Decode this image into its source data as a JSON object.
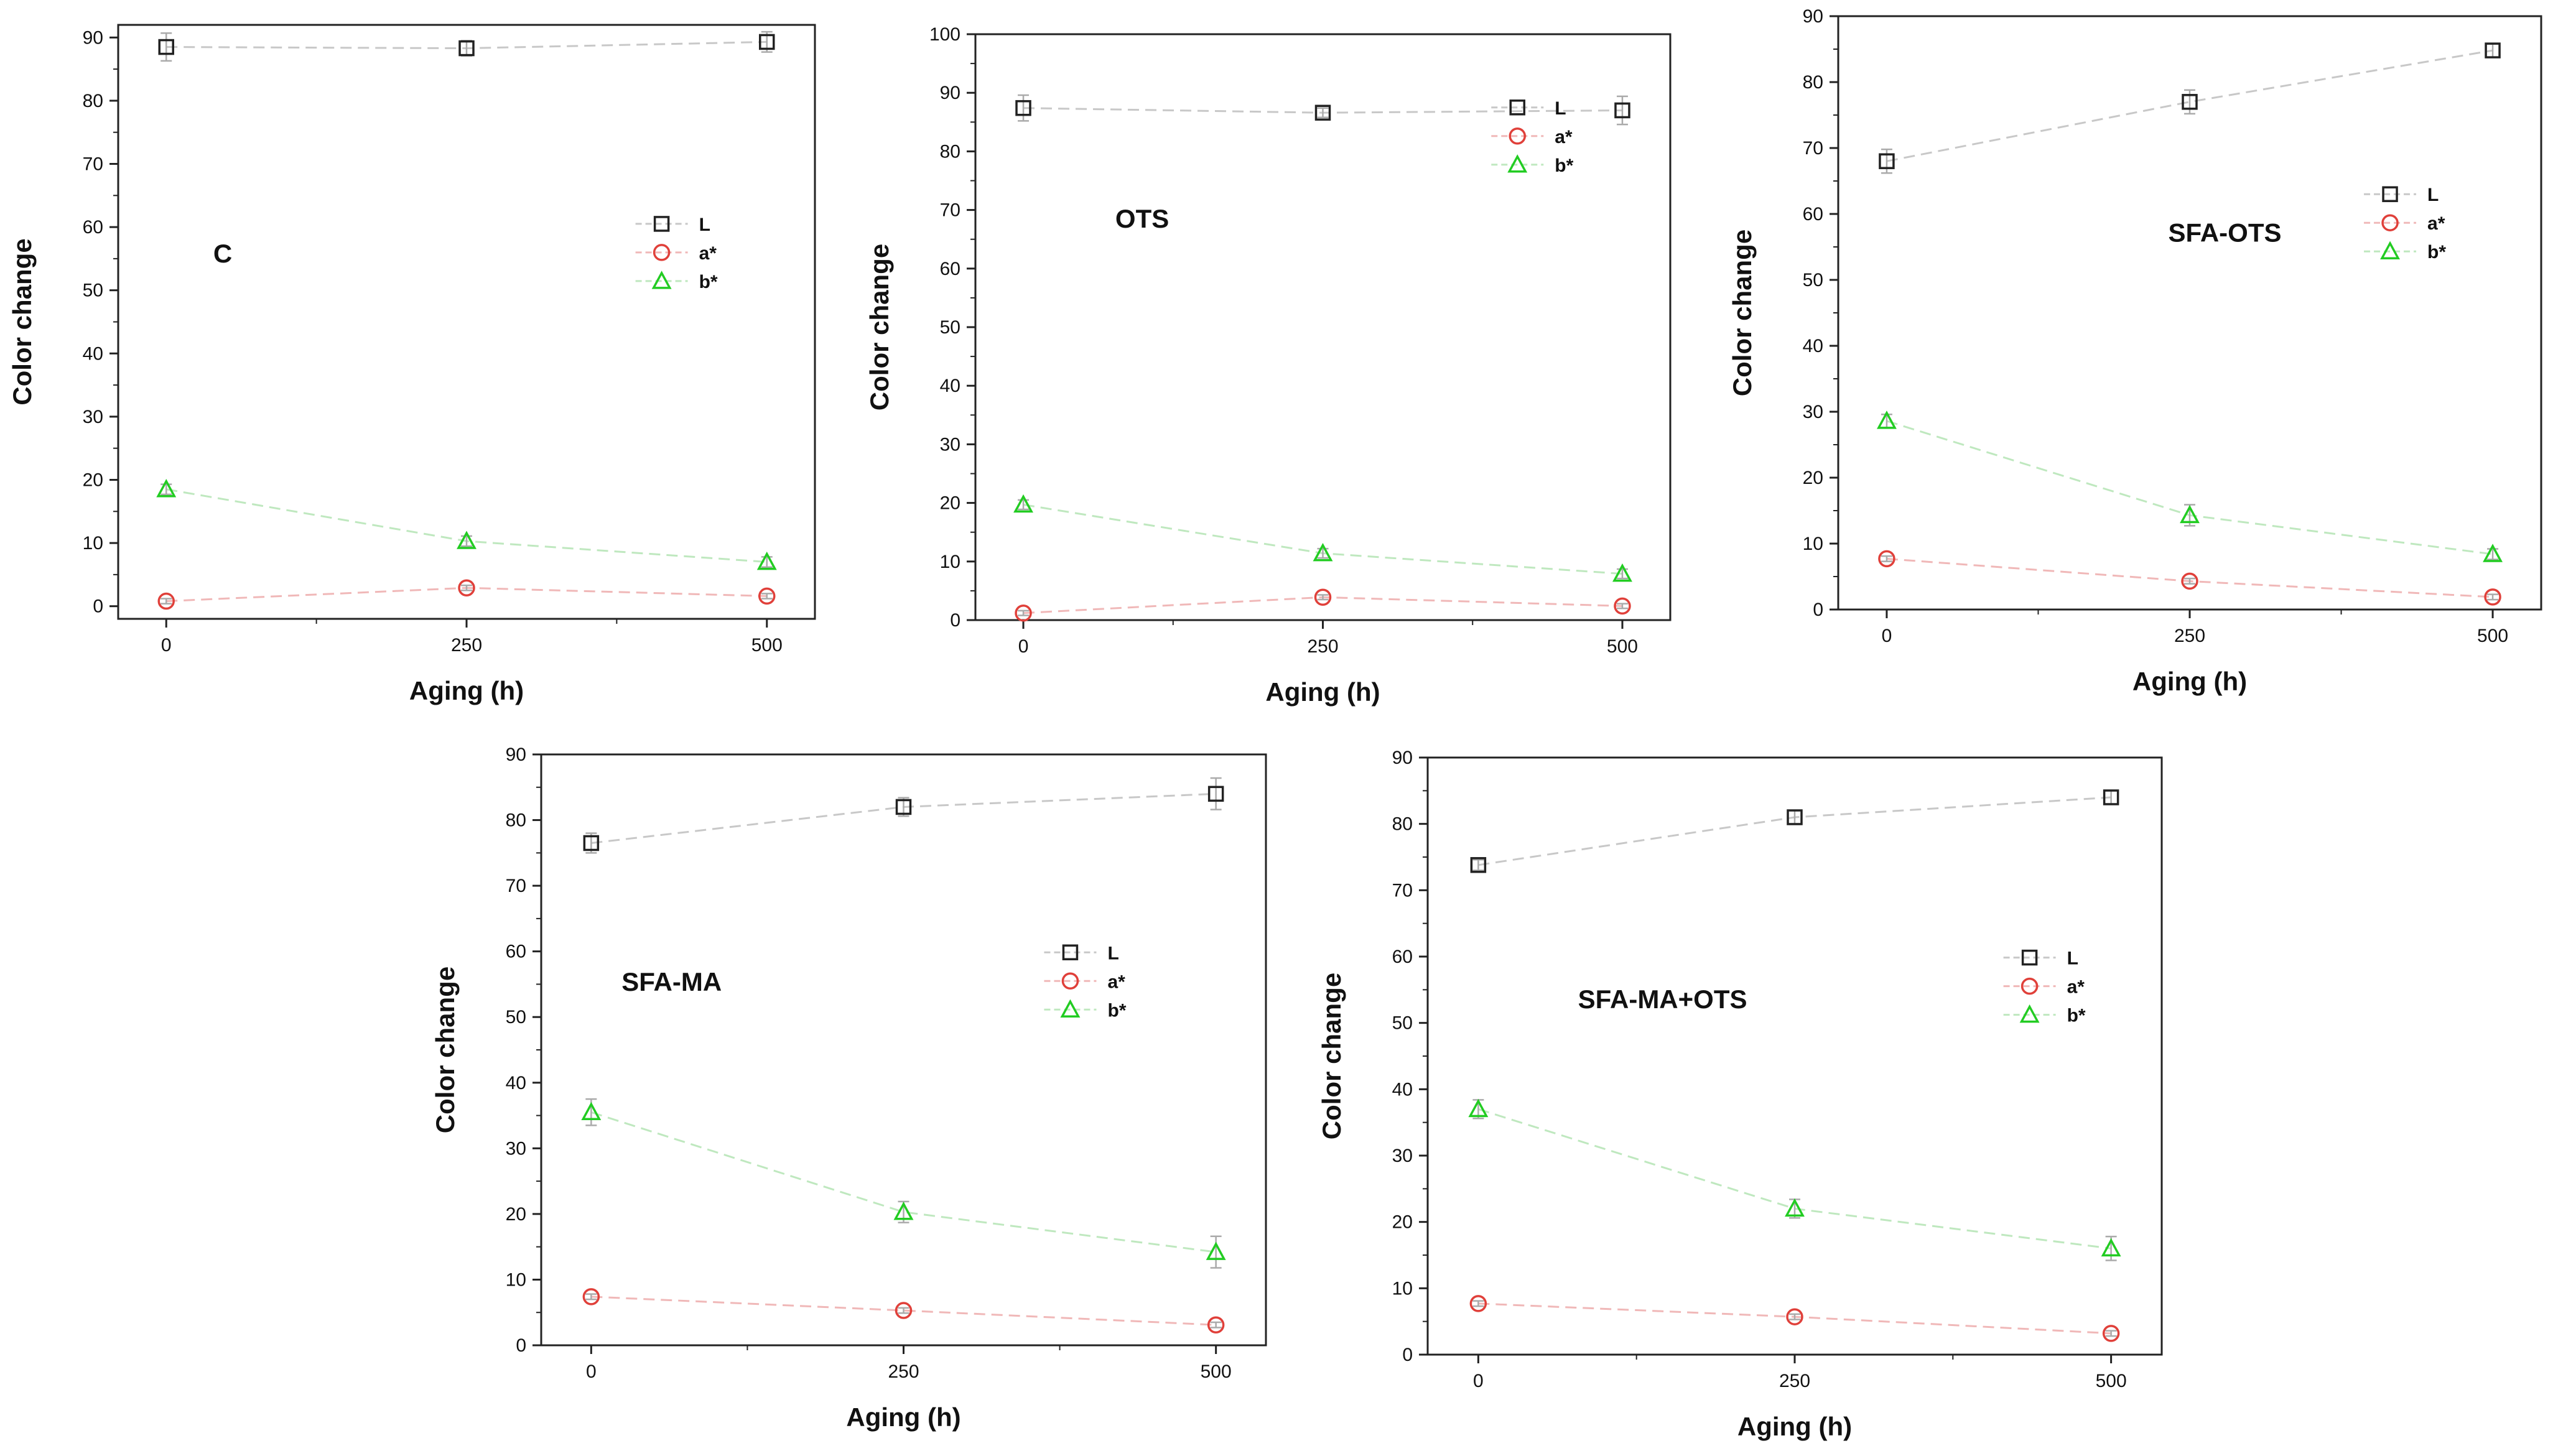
{
  "figure": {
    "series_styles": [
      {
        "key": "L",
        "marker": "square",
        "color": "#222222"
      },
      {
        "key": "a*",
        "marker": "circle",
        "color": "#e0403a"
      },
      {
        "key": "b*",
        "marker": "triangle",
        "color": "#22cc22"
      }
    ],
    "line_colors": {
      "L": "#c8c8c8",
      "a*": "#f0b8b8",
      "b*": "#bfe8bf"
    },
    "error_bar_color": "#aaaaaa"
  },
  "chart_data": [
    {
      "type": "scatter",
      "title": "C",
      "xlabel": "Aging (h)",
      "ylabel": "Color change",
      "x": [
        0,
        250,
        500
      ],
      "xticks": [
        0,
        250,
        500
      ],
      "xlim": [
        -40,
        540
      ],
      "ylim": [
        -2,
        92
      ],
      "yticks": [
        0,
        10,
        20,
        30,
        40,
        50,
        60,
        70,
        80,
        90
      ],
      "legend_position": "right-middle",
      "series": [
        {
          "name": "L",
          "values": [
            88.5,
            88.3,
            89.3
          ],
          "errors": [
            2.2,
            1.2,
            1.6
          ]
        },
        {
          "name": "a*",
          "values": [
            0.8,
            2.9,
            1.6
          ],
          "errors": [
            0.4,
            0.4,
            0.4
          ]
        },
        {
          "name": "b*",
          "values": [
            18.5,
            10.3,
            7.0
          ],
          "errors": [
            0.8,
            0.8,
            0.8
          ]
        }
      ]
    },
    {
      "type": "scatter",
      "title": "OTS",
      "xlabel": "Aging (h)",
      "ylabel": "Color change",
      "x": [
        0,
        250,
        500
      ],
      "xticks": [
        0,
        250,
        500
      ],
      "xlim": [
        -40,
        540
      ],
      "ylim": [
        0,
        100
      ],
      "yticks": [
        0,
        10,
        20,
        30,
        40,
        50,
        60,
        70,
        80,
        90,
        100
      ],
      "legend_position": "right-top",
      "series": [
        {
          "name": "L",
          "values": [
            87.4,
            86.6,
            87.0
          ],
          "errors": [
            2.2,
            0.8,
            2.4
          ]
        },
        {
          "name": "a*",
          "values": [
            1.2,
            3.9,
            2.4
          ],
          "errors": [
            0.4,
            0.4,
            0.4
          ]
        },
        {
          "name": "b*",
          "values": [
            19.7,
            11.4,
            7.9
          ],
          "errors": [
            0.8,
            0.8,
            0.8
          ]
        }
      ]
    },
    {
      "type": "scatter",
      "title": "SFA-OTS",
      "xlabel": "Aging (h)",
      "ylabel": "Color change",
      "x": [
        0,
        250,
        500
      ],
      "xticks": [
        0,
        250,
        500
      ],
      "xlim": [
        -40,
        540
      ],
      "ylim": [
        0,
        90
      ],
      "yticks": [
        0,
        10,
        20,
        30,
        40,
        50,
        60,
        70,
        80,
        90
      ],
      "legend_position": "right-middle",
      "series": [
        {
          "name": "L",
          "values": [
            68.0,
            77.0,
            84.8
          ],
          "errors": [
            1.8,
            1.8,
            1.0
          ]
        },
        {
          "name": "a*",
          "values": [
            7.7,
            4.3,
            1.9
          ],
          "errors": [
            0.4,
            0.4,
            0.4
          ]
        },
        {
          "name": "b*",
          "values": [
            28.6,
            14.3,
            8.4
          ],
          "errors": [
            1.0,
            1.6,
            0.8
          ]
        }
      ]
    },
    {
      "type": "scatter",
      "title": "SFA-MA",
      "xlabel": "Aging (h)",
      "ylabel": "Color change",
      "x": [
        0,
        250,
        500
      ],
      "xticks": [
        0,
        250,
        500
      ],
      "xlim": [
        -40,
        540
      ],
      "ylim": [
        0,
        90
      ],
      "yticks": [
        0,
        10,
        20,
        30,
        40,
        50,
        60,
        70,
        80,
        90
      ],
      "legend_position": "right-middle",
      "series": [
        {
          "name": "L",
          "values": [
            76.5,
            82.0,
            84.0
          ],
          "errors": [
            1.5,
            1.4,
            2.4
          ]
        },
        {
          "name": "a*",
          "values": [
            7.4,
            5.3,
            3.1
          ],
          "errors": [
            0.4,
            0.4,
            0.4
          ]
        },
        {
          "name": "b*",
          "values": [
            35.5,
            20.3,
            14.2
          ],
          "errors": [
            2.0,
            1.6,
            2.4
          ]
        }
      ]
    },
    {
      "type": "scatter",
      "title": "SFA-MA+OTS",
      "xlabel": "Aging (h)",
      "ylabel": "Color change",
      "x": [
        0,
        250,
        500
      ],
      "xticks": [
        0,
        250,
        500
      ],
      "xlim": [
        -40,
        540
      ],
      "ylim": [
        0,
        90
      ],
      "yticks": [
        0,
        10,
        20,
        30,
        40,
        50,
        60,
        70,
        80,
        90
      ],
      "legend_position": "right-middle",
      "series": [
        {
          "name": "L",
          "values": [
            73.8,
            81.0,
            84.0
          ],
          "errors": [
            0.8,
            1.0,
            1.0
          ]
        },
        {
          "name": "a*",
          "values": [
            7.7,
            5.7,
            3.2
          ],
          "errors": [
            0.4,
            0.4,
            0.4
          ]
        },
        {
          "name": "b*",
          "values": [
            37.0,
            22.0,
            16.0
          ],
          "errors": [
            1.4,
            1.4,
            1.8
          ]
        }
      ]
    }
  ]
}
